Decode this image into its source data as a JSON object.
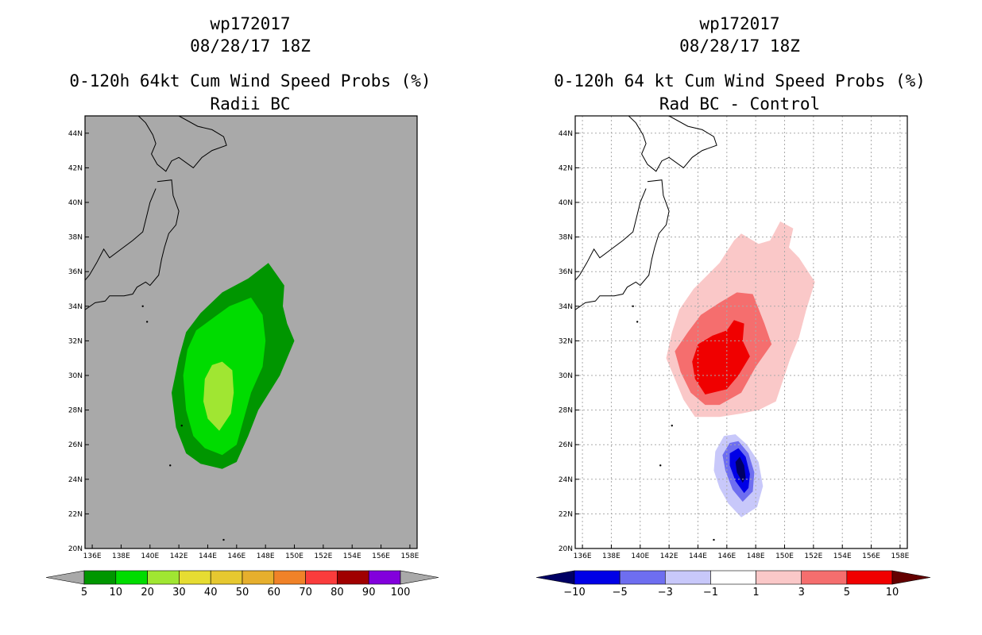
{
  "chart_data": [
    {
      "type": "contour-map",
      "title_lines": [
        "wp172017",
        "08/28/17 18Z",
        "0-120h 64kt Cum Wind Speed Probs (%)",
        "Radii BC"
      ],
      "x_ticks": [
        "136E",
        "138E",
        "140E",
        "142E",
        "144E",
        "146E",
        "148E",
        "150E",
        "152E",
        "154E",
        "156E",
        "158E"
      ],
      "y_ticks": [
        "20N",
        "22N",
        "24N",
        "26N",
        "28N",
        "30N",
        "32N",
        "34N",
        "36N",
        "38N",
        "40N",
        "42N",
        "44N"
      ],
      "xlim": [
        135.5,
        158.5
      ],
      "ylim": [
        20,
        45
      ],
      "background": "#a9a9a9",
      "grid": false,
      "colorbar": {
        "levels": [
          "5",
          "10",
          "20",
          "30",
          "40",
          "50",
          "60",
          "70",
          "80",
          "90",
          "100"
        ],
        "colors": [
          "#009600",
          "#00dc00",
          "#a0e632",
          "#e6dc32",
          "#e6c830",
          "#e6af2d",
          "#f08228",
          "#fa3c3c",
          "#a00000",
          "#8200dc"
        ],
        "under_color": "#a9a9a9",
        "over_color": "#a9a9a9"
      },
      "filled_regions": [
        {
          "level": "5-10",
          "color": "#009600",
          "lonlat": [
            [
              145.0,
              24.6
            ],
            [
              143.5,
              24.9
            ],
            [
              142.5,
              25.5
            ],
            [
              141.8,
              27.0
            ],
            [
              141.5,
              29.0
            ],
            [
              142.0,
              31.0
            ],
            [
              142.5,
              32.5
            ],
            [
              143.5,
              33.6
            ],
            [
              145.0,
              34.8
            ],
            [
              146.8,
              35.6
            ],
            [
              148.2,
              36.5
            ],
            [
              148.8,
              35.8
            ],
            [
              149.3,
              35.2
            ],
            [
              149.2,
              34.0
            ],
            [
              149.5,
              33.0
            ],
            [
              150.0,
              32.0
            ],
            [
              149.0,
              30.0
            ],
            [
              147.5,
              28.0
            ],
            [
              146.8,
              26.5
            ],
            [
              146.0,
              25.0
            ]
          ]
        },
        {
          "level": "10-20",
          "color": "#00dc00",
          "lonlat": [
            [
              145.0,
              25.4
            ],
            [
              143.8,
              25.8
            ],
            [
              143.0,
              26.5
            ],
            [
              142.5,
              28.0
            ],
            [
              142.3,
              30.0
            ],
            [
              142.6,
              31.5
            ],
            [
              143.2,
              32.6
            ],
            [
              144.5,
              33.4
            ],
            [
              145.5,
              34.0
            ],
            [
              147.0,
              34.5
            ],
            [
              147.8,
              33.5
            ],
            [
              148.0,
              32.0
            ],
            [
              147.8,
              30.5
            ],
            [
              147.0,
              29.0
            ],
            [
              146.5,
              27.5
            ],
            [
              146.0,
              26.0
            ]
          ]
        },
        {
          "level": "20-30",
          "color": "#a0e632",
          "lonlat": [
            [
              144.8,
              26.8
            ],
            [
              144.0,
              27.5
            ],
            [
              143.7,
              28.5
            ],
            [
              143.8,
              29.8
            ],
            [
              144.3,
              30.6
            ],
            [
              145.0,
              30.8
            ],
            [
              145.7,
              30.3
            ],
            [
              145.8,
              29.0
            ],
            [
              145.6,
              27.8
            ]
          ]
        }
      ]
    },
    {
      "type": "contour-map",
      "title_lines": [
        "wp172017",
        "08/28/17 18Z",
        "0-120h 64 kt Cum Wind Speed Probs (%)",
        "Rad BC - Control"
      ],
      "x_ticks": [
        "136E",
        "138E",
        "140E",
        "142E",
        "144E",
        "146E",
        "148E",
        "150E",
        "152E",
        "154E",
        "156E",
        "158E"
      ],
      "y_ticks": [
        "20N",
        "22N",
        "24N",
        "26N",
        "28N",
        "30N",
        "32N",
        "34N",
        "36N",
        "38N",
        "40N",
        "42N",
        "44N"
      ],
      "xlim": [
        135.5,
        158.5
      ],
      "ylim": [
        20,
        45
      ],
      "background": "#ffffff",
      "grid": true,
      "colorbar": {
        "levels": [
          "-10",
          "-5",
          "-3",
          "-1",
          "1",
          "3",
          "5",
          "10"
        ],
        "colors": [
          "#0000e6",
          "#6e6ef0",
          "#c8c8fa",
          "#ffffff",
          "#fac8c8",
          "#f56e6e",
          "#f00000"
        ],
        "under_color": "#000064",
        "over_color": "#640000"
      },
      "filled_regions": [
        {
          "level": "1-3",
          "color": "#fac8c8",
          "lonlat": [
            [
              143.8,
              27.6
            ],
            [
              143.0,
              28.6
            ],
            [
              142.3,
              30.0
            ],
            [
              141.8,
              31.0
            ],
            [
              142.2,
              32.5
            ],
            [
              142.7,
              33.8
            ],
            [
              143.7,
              35.0
            ],
            [
              145.5,
              36.5
            ],
            [
              146.5,
              37.8
            ],
            [
              147.0,
              38.2
            ],
            [
              148.2,
              37.6
            ],
            [
              149.0,
              37.8
            ],
            [
              149.7,
              38.9
            ],
            [
              150.6,
              38.5
            ],
            [
              150.3,
              37.4
            ],
            [
              151.0,
              36.8
            ],
            [
              152.1,
              35.4
            ],
            [
              151.5,
              33.8
            ],
            [
              151.0,
              32.2
            ],
            [
              150.4,
              31.0
            ],
            [
              149.4,
              28.5
            ],
            [
              148.2,
              28.0
            ],
            [
              147.0,
              27.8
            ],
            [
              145.5,
              27.6
            ]
          ]
        },
        {
          "level": "3-5",
          "color": "#f56e6e",
          "lonlat": [
            [
              144.5,
              28.3
            ],
            [
              143.5,
              29.0
            ],
            [
              142.8,
              30.2
            ],
            [
              142.4,
              31.4
            ],
            [
              143.3,
              32.5
            ],
            [
              144.2,
              33.5
            ],
            [
              145.5,
              34.2
            ],
            [
              146.7,
              34.8
            ],
            [
              147.8,
              34.7
            ],
            [
              148.6,
              33.0
            ],
            [
              149.1,
              31.8
            ],
            [
              148.0,
              30.5
            ],
            [
              147.0,
              29.0
            ],
            [
              145.5,
              28.3
            ]
          ]
        },
        {
          "level": "5-10",
          "color": "#f00000",
          "lonlat": [
            [
              144.5,
              28.9
            ],
            [
              143.8,
              29.8
            ],
            [
              143.6,
              30.8
            ],
            [
              144.0,
              31.8
            ],
            [
              145.0,
              32.3
            ],
            [
              146.0,
              32.6
            ],
            [
              146.5,
              33.2
            ],
            [
              147.2,
              33.0
            ],
            [
              147.1,
              32.0
            ],
            [
              147.6,
              31.1
            ],
            [
              146.8,
              30.0
            ],
            [
              146.0,
              29.2
            ]
          ]
        },
        {
          "level": "-3--1",
          "color": "#c8c8fa",
          "lonlat": [
            [
              147.0,
              21.8
            ],
            [
              146.1,
              22.6
            ],
            [
              145.5,
              23.5
            ],
            [
              145.1,
              24.5
            ],
            [
              145.2,
              25.6
            ],
            [
              145.8,
              26.5
            ],
            [
              146.6,
              26.6
            ],
            [
              147.4,
              26.0
            ],
            [
              148.2,
              25.0
            ],
            [
              148.5,
              23.6
            ],
            [
              148.1,
              22.4
            ]
          ]
        },
        {
          "level": "-5--3",
          "color": "#6e6ef0",
          "lonlat": [
            [
              147.1,
              22.7
            ],
            [
              146.4,
              23.4
            ],
            [
              145.9,
              24.5
            ],
            [
              145.7,
              25.4
            ],
            [
              146.2,
              26.1
            ],
            [
              146.8,
              26.2
            ],
            [
              147.5,
              25.5
            ],
            [
              147.9,
              24.4
            ],
            [
              147.8,
              23.3
            ]
          ]
        },
        {
          "level": "-10--5",
          "color": "#0000e6",
          "lonlat": [
            [
              147.2,
              23.2
            ],
            [
              146.6,
              23.9
            ],
            [
              146.2,
              24.8
            ],
            [
              146.2,
              25.5
            ],
            [
              146.8,
              25.8
            ],
            [
              147.3,
              25.3
            ],
            [
              147.6,
              24.3
            ],
            [
              147.5,
              23.5
            ]
          ]
        },
        {
          "level": "<-10",
          "color": "#000064",
          "lonlat": [
            [
              147.1,
              23.8
            ],
            [
              146.7,
              24.4
            ],
            [
              146.6,
              25.0
            ],
            [
              146.9,
              25.3
            ],
            [
              147.2,
              24.8
            ],
            [
              147.3,
              24.1
            ]
          ]
        }
      ]
    }
  ],
  "coastlines": [
    [
      [
        139.2,
        45.0
      ],
      [
        139.7,
        44.6
      ],
      [
        140.2,
        43.9
      ],
      [
        140.4,
        43.4
      ],
      [
        140.1,
        42.8
      ],
      [
        140.5,
        42.2
      ],
      [
        141.1,
        41.8
      ],
      [
        141.5,
        42.4
      ],
      [
        142.0,
        42.6
      ],
      [
        143.0,
        42.0
      ],
      [
        143.6,
        42.6
      ],
      [
        144.3,
        43.0
      ],
      [
        145.3,
        43.3
      ],
      [
        145.1,
        43.8
      ],
      [
        144.3,
        44.2
      ],
      [
        143.3,
        44.4
      ],
      [
        142.0,
        45.0
      ]
    ],
    [
      [
        140.4,
        40.8
      ],
      [
        140.0,
        40.0
      ],
      [
        139.8,
        39.3
      ],
      [
        139.5,
        38.3
      ],
      [
        138.8,
        37.8
      ],
      [
        138.0,
        37.3
      ],
      [
        137.2,
        36.8
      ],
      [
        136.8,
        37.3
      ],
      [
        136.3,
        36.5
      ],
      [
        135.8,
        35.8
      ],
      [
        135.5,
        35.5
      ]
    ],
    [
      [
        140.5,
        41.2
      ],
      [
        141.5,
        41.3
      ],
      [
        141.6,
        40.4
      ],
      [
        142.0,
        39.5
      ],
      [
        141.8,
        38.7
      ],
      [
        141.3,
        38.2
      ],
      [
        141.0,
        37.4
      ],
      [
        140.8,
        36.7
      ],
      [
        140.6,
        35.8
      ],
      [
        140.0,
        35.2
      ],
      [
        139.7,
        35.4
      ],
      [
        139.1,
        35.1
      ],
      [
        138.8,
        34.7
      ],
      [
        138.2,
        34.6
      ],
      [
        137.2,
        34.6
      ],
      [
        136.9,
        34.3
      ],
      [
        136.2,
        34.2
      ],
      [
        135.5,
        33.8
      ]
    ]
  ],
  "islands": [
    [
      139.5,
      34.0
    ],
    [
      139.8,
      33.1
    ],
    [
      142.2,
      27.1
    ],
    [
      141.4,
      24.8
    ],
    [
      145.1,
      20.5
    ]
  ]
}
